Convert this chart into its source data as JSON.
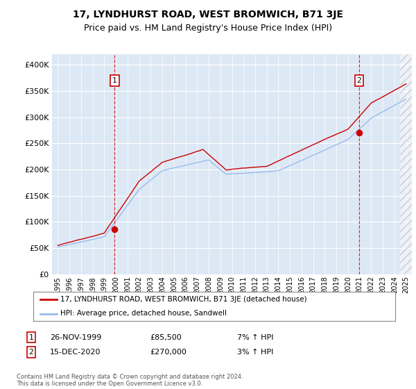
{
  "title": "17, LYNDHURST ROAD, WEST BROMWICH, B71 3JE",
  "subtitle": "Price paid vs. HM Land Registry's House Price Index (HPI)",
  "ylim": [
    0,
    420000
  ],
  "yticks": [
    0,
    50000,
    100000,
    150000,
    200000,
    250000,
    300000,
    350000,
    400000
  ],
  "ytick_labels": [
    "£0",
    "£50K",
    "£100K",
    "£150K",
    "£200K",
    "£250K",
    "£300K",
    "£350K",
    "£400K"
  ],
  "fig_bg": "#ffffff",
  "plot_bg": "#dde8f5",
  "grid_color": "#ffffff",
  "red_line_color": "#cc0000",
  "blue_line_color": "#99bbee",
  "legend_label_red": "17, LYNDHURST ROAD, WEST BROMWICH, B71 3JE (detached house)",
  "legend_label_blue": "HPI: Average price, detached house, Sandwell",
  "annotation1_date": "26-NOV-1999",
  "annotation1_price": "£85,500",
  "annotation1_hpi": "7% ↑ HPI",
  "annotation2_date": "15-DEC-2020",
  "annotation2_price": "£270,000",
  "annotation2_hpi": "3% ↑ HPI",
  "footnote": "Contains HM Land Registry data © Crown copyright and database right 2024.\nThis data is licensed under the Open Government Licence v3.0.",
  "title_fontsize": 10,
  "subtitle_fontsize": 9,
  "sale1_x": 1999.9,
  "sale1_y": 85500,
  "sale2_x": 2020.96,
  "sale2_y": 270000,
  "xmin": 1994.5,
  "xmax": 2025.5
}
